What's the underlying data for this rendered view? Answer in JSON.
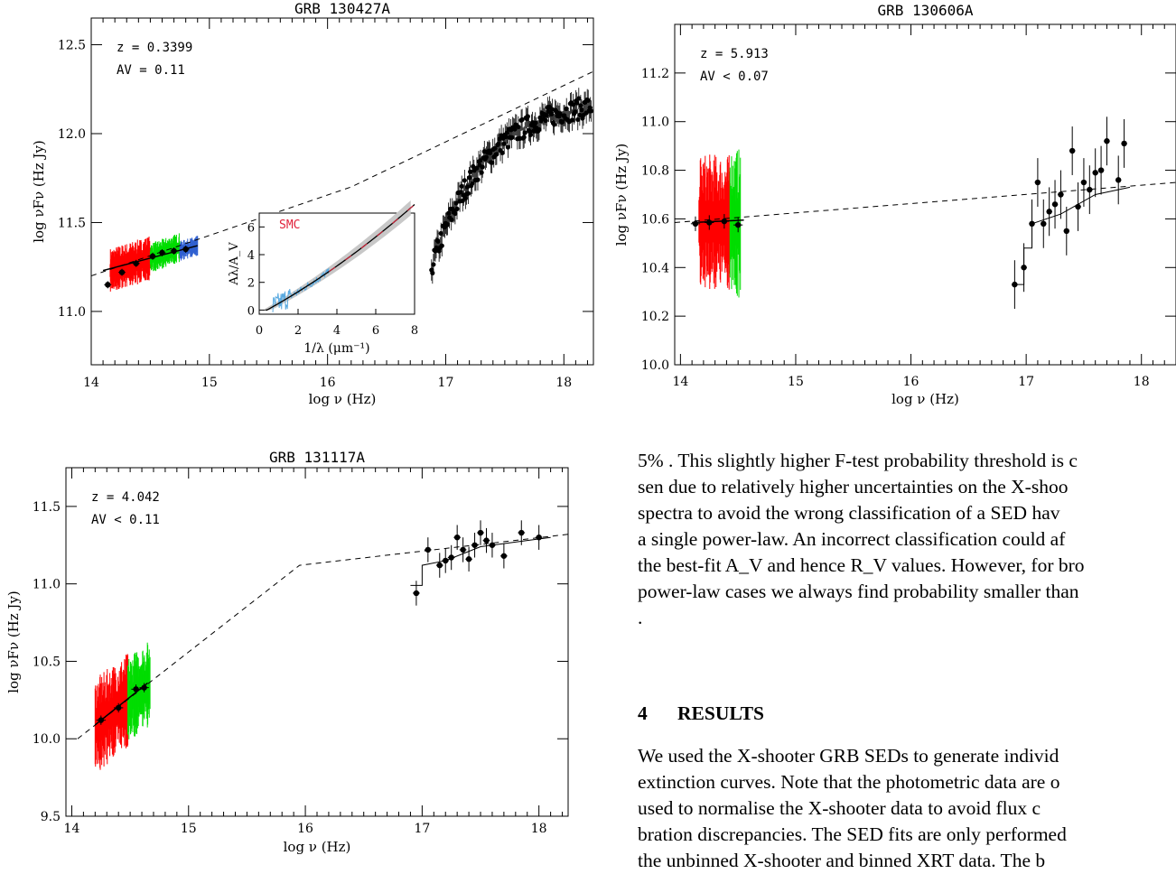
{
  "chart_data": [
    {
      "type": "scatter",
      "title": "GRB 130427A",
      "xlabel": "log ν (Hz)",
      "ylabel": "log νF_ν (Hz Jy)",
      "xlim": [
        14.0,
        18.25
      ],
      "ylim": [
        10.7,
        12.65
      ],
      "xticks": [
        "14",
        "15",
        "16",
        "17",
        "18"
      ],
      "yticks": [
        "11.0",
        "11.5",
        "12.0",
        "12.5"
      ],
      "annotations": [
        "z = 0.3399",
        "A_V = 0.11"
      ],
      "photometry": [
        [
          14.14,
          11.15
        ],
        [
          14.26,
          11.22
        ],
        [
          14.38,
          11.27
        ],
        [
          14.52,
          11.31
        ],
        [
          14.6,
          11.33
        ],
        [
          14.7,
          11.34
        ],
        [
          14.8,
          11.35
        ]
      ],
      "xshooter_segments": [
        {
          "color": "#ff0000",
          "x": [
            14.16,
            14.5
          ],
          "y": [
            11.25,
            11.31
          ]
        },
        {
          "color": "#00dd00",
          "x": [
            14.5,
            14.75
          ],
          "y": [
            11.31,
            11.37
          ]
        },
        {
          "color": "#3060d0",
          "x": [
            14.75,
            14.9
          ],
          "y": [
            11.35,
            11.38
          ]
        }
      ],
      "model_break": [
        [
          14.0,
          11.2
        ],
        [
          16.0,
          11.65
        ],
        [
          18.25,
          12.35
        ]
      ],
      "xrt_points": [
        [
          16.9,
          11.25
        ],
        [
          16.95,
          11.45
        ],
        [
          17.0,
          11.55
        ],
        [
          17.1,
          11.7
        ],
        [
          17.2,
          11.8
        ],
        [
          17.3,
          11.95
        ],
        [
          17.4,
          12.0
        ],
        [
          17.5,
          12.1
        ],
        [
          17.6,
          12.12
        ],
        [
          17.7,
          12.15
        ],
        [
          17.8,
          12.2
        ],
        [
          17.9,
          12.25
        ],
        [
          18.0,
          12.28
        ],
        [
          18.1,
          12.32
        ],
        [
          18.2,
          12.4
        ]
      ],
      "inset": {
        "label": "SMC",
        "xlabel": "1/λ (μm⁻¹)",
        "ylabel": "A_λ/A_V",
        "xticks": [
          "0",
          "2",
          "4",
          "6",
          "8"
        ],
        "yticks": [
          "0",
          "2",
          "4",
          "6"
        ],
        "xlim": [
          0,
          8
        ],
        "ylim": [
          -0.3,
          7
        ]
      }
    },
    {
      "type": "scatter",
      "title": "GRB 130606A",
      "xlabel": "log ν (Hz)",
      "ylabel": "log νF_ν (Hz Jy)",
      "xlim": [
        13.95,
        18.3
      ],
      "ylim": [
        10.0,
        11.4
      ],
      "xticks": [
        "14",
        "15",
        "16",
        "17",
        "18"
      ],
      "yticks": [
        "10.0",
        "10.2",
        "10.4",
        "10.6",
        "10.8",
        "11.0",
        "11.2"
      ],
      "annotations": [
        "z = 5.913",
        "A_V < 0.07"
      ],
      "photometry": [
        [
          14.13,
          10.58
        ],
        [
          14.25,
          10.585
        ],
        [
          14.38,
          10.59
        ],
        [
          14.5,
          10.575
        ]
      ],
      "xrt_points": [
        [
          16.9,
          10.33
        ],
        [
          16.98,
          10.4
        ],
        [
          17.05,
          10.58
        ],
        [
          17.1,
          10.75
        ],
        [
          17.15,
          10.58
        ],
        [
          17.2,
          10.63
        ],
        [
          17.25,
          10.66
        ],
        [
          17.3,
          10.7
        ],
        [
          17.35,
          10.55
        ],
        [
          17.4,
          10.88
        ],
        [
          17.45,
          10.65
        ],
        [
          17.5,
          10.75
        ],
        [
          17.55,
          10.72
        ],
        [
          17.6,
          10.79
        ],
        [
          17.65,
          10.8
        ],
        [
          17.7,
          10.92
        ],
        [
          17.8,
          10.76
        ],
        [
          17.85,
          10.91
        ]
      ]
    },
    {
      "type": "scatter",
      "title": "GRB 131117A",
      "xlabel": "log ν (Hz)",
      "ylabel": "log νF_ν (Hz Jy)",
      "xlim": [
        13.95,
        18.25
      ],
      "ylim": [
        9.5,
        11.75
      ],
      "xticks": [
        "14",
        "15",
        "16",
        "17",
        "18"
      ],
      "yticks": [
        "9.5",
        "10.0",
        "10.5",
        "11.0",
        "11.5"
      ],
      "annotations": [
        "z = 4.042",
        "A_V < 0.11"
      ],
      "photometry": [
        [
          14.25,
          10.12
        ],
        [
          14.4,
          10.2
        ],
        [
          14.55,
          10.32
        ],
        [
          14.62,
          10.33
        ]
      ],
      "xrt_points": [
        [
          16.95,
          10.94
        ],
        [
          17.05,
          11.22
        ],
        [
          17.15,
          11.12
        ],
        [
          17.2,
          11.15
        ],
        [
          17.25,
          11.17
        ],
        [
          17.3,
          11.3
        ],
        [
          17.35,
          11.22
        ],
        [
          17.4,
          11.16
        ],
        [
          17.45,
          11.25
        ],
        [
          17.5,
          11.33
        ],
        [
          17.55,
          11.28
        ],
        [
          17.6,
          11.25
        ],
        [
          17.7,
          11.18
        ],
        [
          17.85,
          11.33
        ],
        [
          18.0,
          11.3
        ]
      ]
    }
  ],
  "text": {
    "para1": [
      "5% . This slightly higher F-test probability threshold is c",
      "sen due to relatively higher uncertainties on the X-shoo",
      "spectra to avoid the wrong classification of a SED hav",
      "a single power-law. An incorrect classification could af",
      "the best-fit A_V and hence R_V values. However, for bro",
      "power-law cases we always find probability smaller than",
      "."
    ],
    "section_num": "4",
    "section_title": "RESULTS",
    "para2": [
      "We used the X-shooter GRB SEDs to generate individ",
      "extinction curves. Note that the photometric data are o",
      "used to normalise the X-shooter data to avoid flux c",
      "bration discrepancies. The SED fits are only performed",
      "the unbinned X-shooter and binned XRT data. The b"
    ]
  }
}
